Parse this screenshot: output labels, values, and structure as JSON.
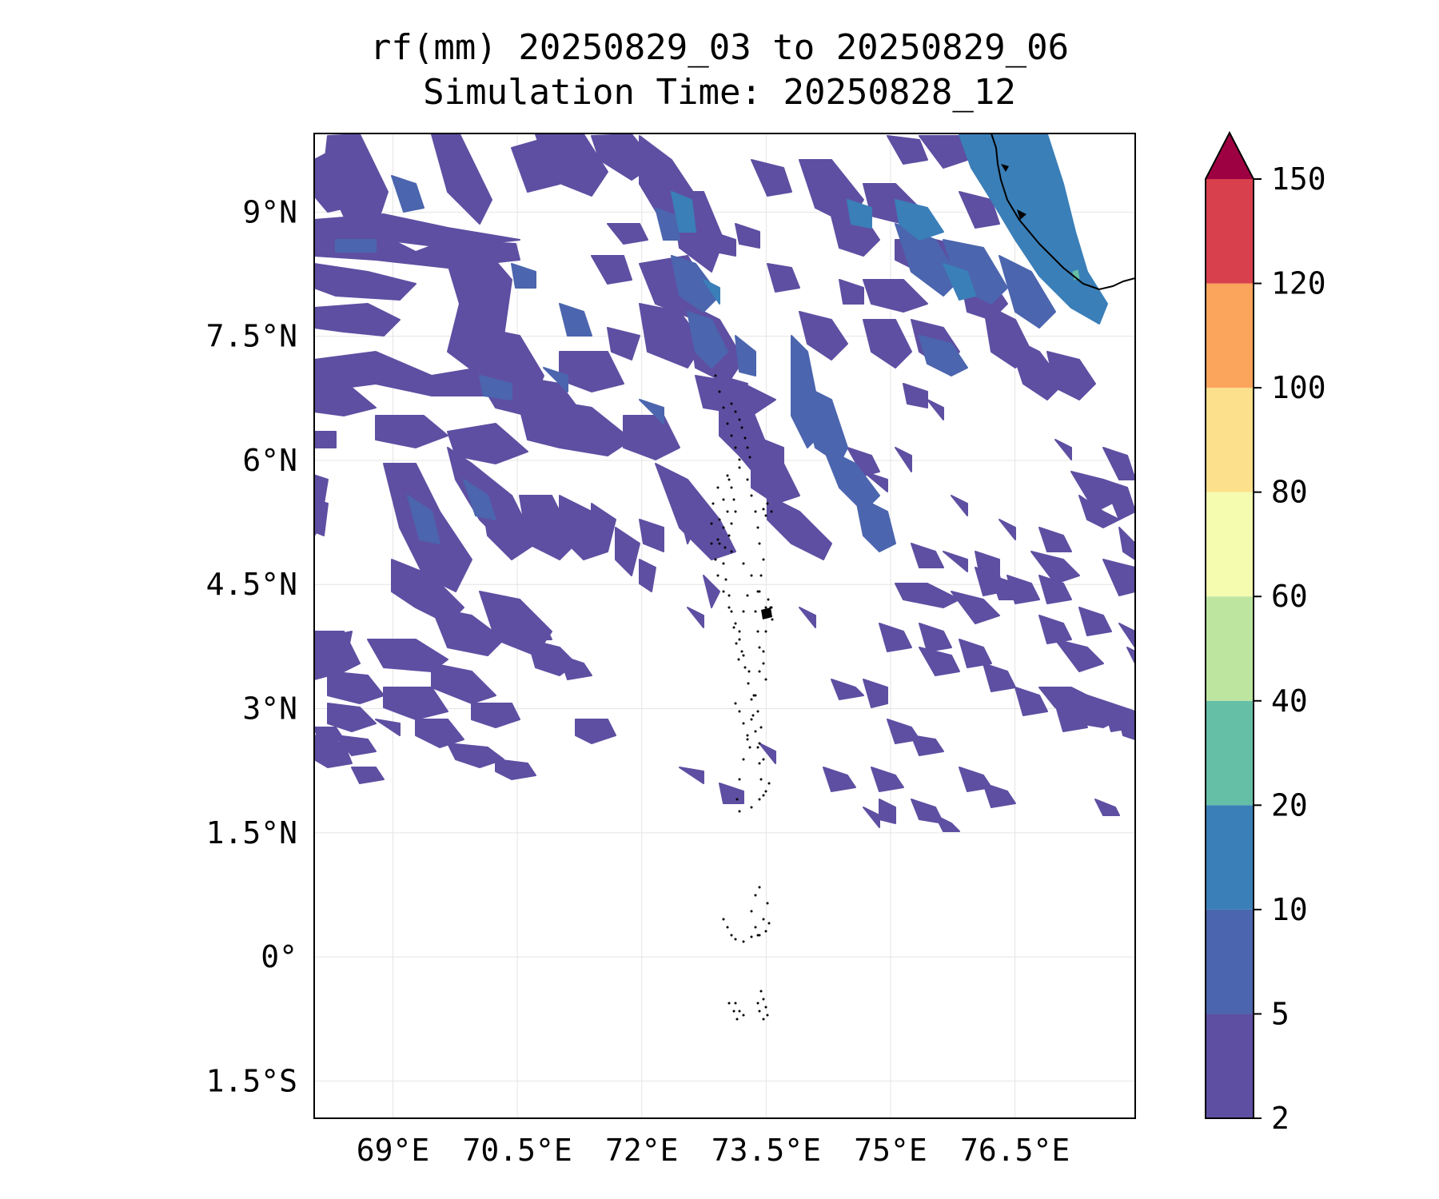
{
  "chart_data": {
    "type": "heatmap",
    "title_line1": "rf(mm) 20250829_03 to 20250829_06",
    "title_line2": "Simulation Time: 20250828_12",
    "x_ticks": [
      69,
      70.5,
      72,
      73.5,
      75,
      76.5
    ],
    "x_tick_labels": [
      "69°E",
      "70.5°E",
      "72°E",
      "73.5°E",
      "75°E",
      "76.5°E"
    ],
    "y_ticks": [
      9,
      7.5,
      6,
      4.5,
      3,
      1.5,
      0,
      -1.5
    ],
    "y_tick_labels": [
      "9°N",
      "7.5°N",
      "6°N",
      "4.5°N",
      "3°N",
      "1.5°N",
      "0°",
      "1.5°S"
    ],
    "xlim": [
      68.05,
      77.95
    ],
    "ylim": [
      -1.95,
      9.95
    ],
    "grid": true,
    "colorbar": {
      "levels": [
        2,
        5,
        10,
        20,
        40,
        60,
        80,
        100,
        120,
        150
      ],
      "tick_labels": [
        "2",
        "5",
        "10",
        "20",
        "40",
        "60",
        "80",
        "100",
        "120",
        "150"
      ],
      "colors": [
        "#5e4fa2",
        "#4b65ae",
        "#3a7fb8",
        "#64bfa6",
        "#bde5a0",
        "#f5fbaf",
        "#fde08b",
        "#fba45c",
        "#d8404e",
        "#9e0142"
      ],
      "extend": "max",
      "placement": "right"
    }
  }
}
